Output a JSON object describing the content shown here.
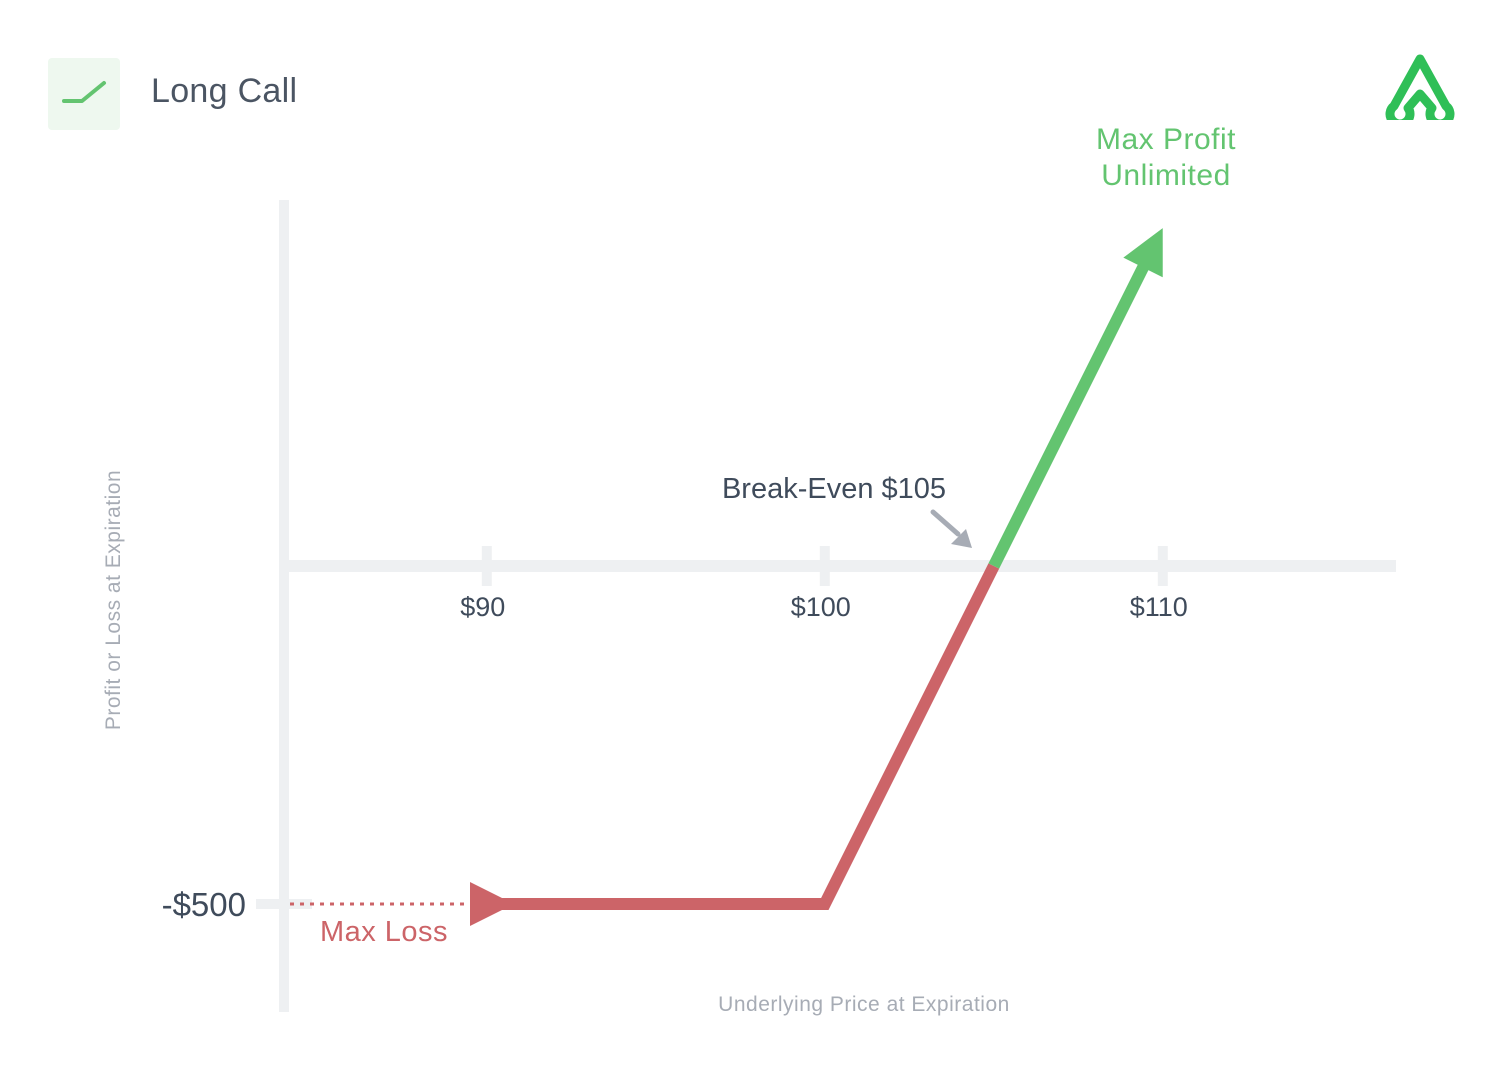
{
  "header": {
    "title": "Long Call",
    "icon": "long-call-payoff-icon",
    "logo": "brand-logo-icon"
  },
  "colors": {
    "profit": "#63c470",
    "loss": "#cc6468",
    "axis": "#eef0f2",
    "text": "#3f4b5b",
    "muted": "#a7acb5"
  },
  "chart_data": {
    "type": "line",
    "title": "Long Call",
    "xlabel": "Underlying Price at Expiration",
    "ylabel": "Profit or Loss at Expiration",
    "xlim": [
      84,
      117
    ],
    "ylim": [
      -500,
      0
    ],
    "x_ticks": [
      {
        "value": 90,
        "label": "$90"
      },
      {
        "value": 100,
        "label": "$100"
      },
      {
        "value": 110,
        "label": "$110"
      }
    ],
    "y_ticks": [
      {
        "value": -500,
        "label": "-$500"
      }
    ],
    "series": [
      {
        "role": "loss",
        "points": [
          [
            90,
            -500
          ],
          [
            100,
            -500
          ],
          [
            105,
            0
          ]
        ]
      },
      {
        "role": "profit",
        "points": [
          [
            105,
            0
          ],
          [
            110,
            500
          ]
        ]
      }
    ],
    "max_loss_ref": {
      "from": 84,
      "to": 90,
      "value": -500,
      "style": "dotted"
    },
    "annotations": {
      "max_profit_line1": "Max Profit",
      "max_profit_line2": "Unlimited",
      "max_loss": "Max Loss",
      "break_even": "Break-Even $105",
      "break_even_value": 105
    }
  }
}
